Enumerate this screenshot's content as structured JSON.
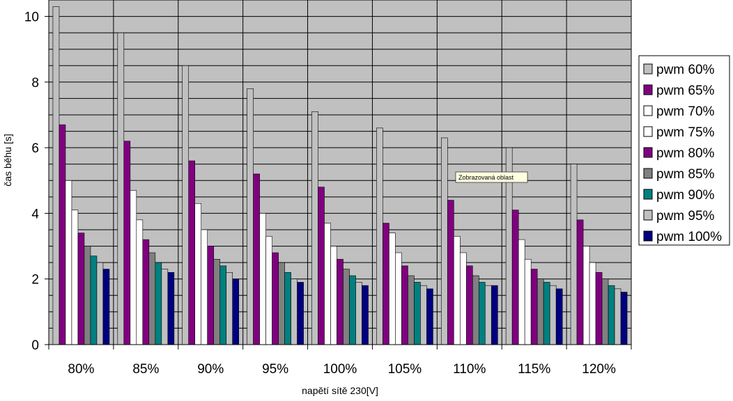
{
  "chart_data": {
    "type": "bar",
    "title": "",
    "xlabel": "napětí sítě 230[V]",
    "ylabel": "čas běhu [s]",
    "ylim": [
      0,
      10.5
    ],
    "yticks": [
      0,
      2,
      4,
      6,
      8,
      10
    ],
    "grid": true,
    "legend_position": "right",
    "categories": [
      "80%",
      "85%",
      "90%",
      "95%",
      "100%",
      "105%",
      "110%",
      "115%",
      "120%"
    ],
    "series": [
      {
        "name": "pwm 60%",
        "color": "#c0c0c0",
        "values": [
          10.3,
          9.5,
          8.5,
          7.8,
          7.1,
          6.6,
          6.3,
          6.0,
          5.5
        ]
      },
      {
        "name": "pwm 65%",
        "color": "#800080",
        "values": [
          6.7,
          6.2,
          5.6,
          5.2,
          4.8,
          3.7,
          4.4,
          4.1,
          3.8
        ]
      },
      {
        "name": "pwm 70%",
        "color": "#ffffff",
        "values": [
          5.0,
          4.7,
          4.3,
          4.0,
          3.7,
          3.4,
          3.3,
          3.2,
          3.0
        ]
      },
      {
        "name": "pwm 75%",
        "color": "#ffffff",
        "values": [
          4.1,
          3.8,
          3.5,
          3.3,
          3.0,
          2.8,
          2.8,
          2.6,
          2.5
        ]
      },
      {
        "name": "pwm 80%",
        "color": "#800080",
        "values": [
          3.4,
          3.2,
          3.0,
          2.8,
          2.6,
          2.4,
          2.4,
          2.3,
          2.2
        ]
      },
      {
        "name": "pwm 85%",
        "color": "#808080",
        "values": [
          3.0,
          2.8,
          2.6,
          2.5,
          2.3,
          2.1,
          2.1,
          2.0,
          2.0
        ]
      },
      {
        "name": "pwm 90%",
        "color": "#008080",
        "values": [
          2.7,
          2.5,
          2.4,
          2.2,
          2.1,
          1.9,
          1.9,
          1.9,
          1.8
        ]
      },
      {
        "name": "pwm 95%",
        "color": "#c0c0c0",
        "values": [
          2.5,
          2.3,
          2.2,
          2.0,
          1.9,
          1.8,
          1.8,
          1.8,
          1.7
        ]
      },
      {
        "name": "pwm 100%",
        "color": "#000080",
        "values": [
          2.3,
          2.2,
          2.0,
          1.9,
          1.8,
          1.7,
          1.8,
          1.7,
          1.6
        ]
      }
    ],
    "plot_background": "#c0c0c0",
    "annotation": "Zobrazovaná oblast"
  }
}
